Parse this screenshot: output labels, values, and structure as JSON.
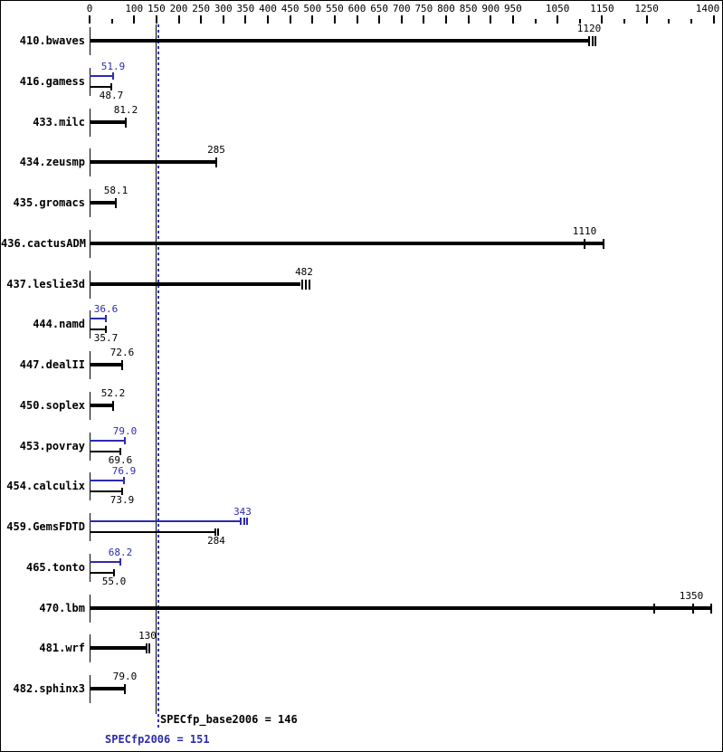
{
  "colors": {
    "base": "#000000",
    "peak": "#2b2baf",
    "peak_refline": "#2e2ec0",
    "background": "#ffffff"
  },
  "chart_data": {
    "type": "bar",
    "orientation": "horizontal",
    "title": "",
    "xlabel": "",
    "ylabel": "",
    "xlim": [
      0,
      1400
    ],
    "tick_step": 50,
    "labeled_ticks": [
      0,
      100,
      150,
      200,
      250,
      300,
      350,
      400,
      450,
      500,
      550,
      600,
      650,
      700,
      750,
      800,
      850,
      900,
      950,
      1050,
      1150,
      1250,
      1400
    ],
    "grid": false,
    "series_meaning": {
      "base": "black bars",
      "peak": "blue bars"
    },
    "benchmarks": [
      {
        "name": "410.bwaves",
        "peak": null,
        "base": {
          "value": 1120,
          "label": "1120",
          "bar_end": 1120,
          "run_marks": [
            1120,
            1128,
            1136
          ]
        }
      },
      {
        "name": "416.gamess",
        "peak": {
          "value": 51.9,
          "label": "51.9"
        },
        "base": {
          "value": 48.7,
          "label": "48.7"
        }
      },
      {
        "name": "433.milc",
        "peak": null,
        "base": {
          "value": 81.2,
          "label": "81.2"
        }
      },
      {
        "name": "434.zeusmp",
        "peak": null,
        "base": {
          "value": 285,
          "label": "285"
        }
      },
      {
        "name": "435.gromacs",
        "peak": null,
        "base": {
          "value": 58.1,
          "label": "58.1"
        }
      },
      {
        "name": "436.cactusADM",
        "peak": null,
        "base": {
          "value": 1110,
          "label": "1110",
          "bar_end": 1153,
          "run_marks": [
            1110,
            1153
          ]
        }
      },
      {
        "name": "437.leslie3d",
        "peak": null,
        "base": {
          "value": 482,
          "label": "482",
          "bar_end": 474,
          "run_marks": [
            477,
            486,
            494
          ]
        }
      },
      {
        "name": "444.namd",
        "peak": {
          "value": 36.6,
          "label": "36.6"
        },
        "base": {
          "value": 35.7,
          "label": "35.7"
        }
      },
      {
        "name": "447.dealII",
        "peak": null,
        "base": {
          "value": 72.6,
          "label": "72.6"
        }
      },
      {
        "name": "450.soplex",
        "peak": null,
        "base": {
          "value": 52.2,
          "label": "52.2"
        }
      },
      {
        "name": "453.povray",
        "peak": {
          "value": 79.0,
          "label": "79.0"
        },
        "base": {
          "value": 69.6,
          "label": "69.6"
        }
      },
      {
        "name": "454.calculix",
        "peak": {
          "value": 76.9,
          "label": "76.9"
        },
        "base": {
          "value": 73.9,
          "label": "73.9"
        }
      },
      {
        "name": "459.GemsFDTD",
        "peak": {
          "value": 343,
          "label": "343",
          "bar_end": 340,
          "run_marks": [
            340,
            347,
            353
          ]
        },
        "base": {
          "value": 284,
          "label": "284",
          "bar_end": 282,
          "run_marks": [
            282,
            288
          ]
        }
      },
      {
        "name": "465.tonto",
        "peak": {
          "value": 68.2,
          "label": "68.2"
        },
        "base": {
          "value": 55.0,
          "label": "55.0"
        }
      },
      {
        "name": "470.lbm",
        "peak": null,
        "base": {
          "value": 1350,
          "label": "1350",
          "bar_end": 1394,
          "run_marks": [
            1268,
            1355,
            1394
          ]
        }
      },
      {
        "name": "481.wrf",
        "peak": null,
        "base": {
          "value": 130,
          "label": "130",
          "bar_end": 128,
          "run_marks": [
            128,
            133
          ]
        }
      },
      {
        "name": "482.sphinx3",
        "peak": null,
        "base": {
          "value": 79.0,
          "label": "79.0"
        }
      }
    ],
    "reference_lines": [
      {
        "name": "base",
        "value": 146,
        "style": "solid",
        "color": "#000000",
        "label": "SPECfp_base2006 = 146"
      },
      {
        "name": "peak",
        "value": 151,
        "style": "dotted",
        "color": "#2e2ec0",
        "label": "SPECfp2006 = 151"
      }
    ]
  }
}
